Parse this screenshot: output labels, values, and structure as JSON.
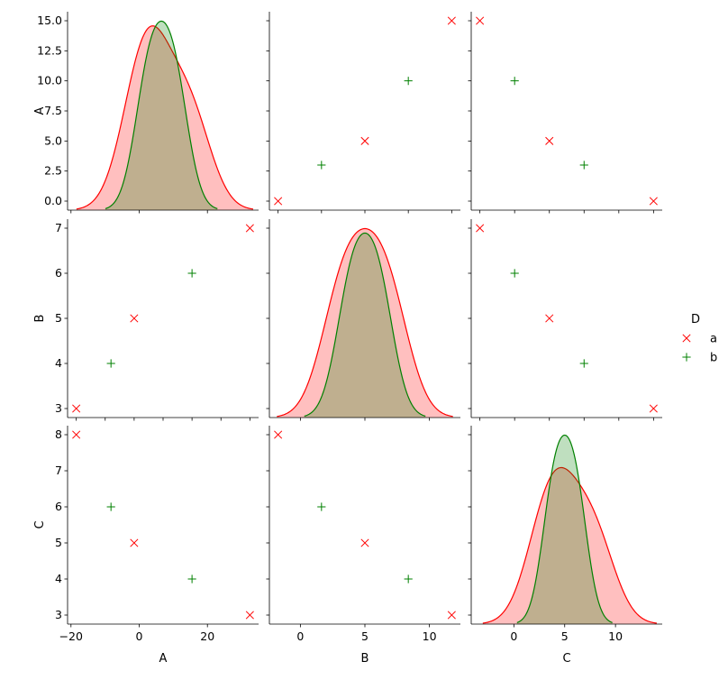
{
  "chart_data": {
    "type": "scatter",
    "kind": "pairplot",
    "variables": [
      "A",
      "B",
      "C"
    ],
    "hue": {
      "title": "D",
      "levels": [
        {
          "name": "a",
          "color": "#ff0000",
          "marker": "x"
        },
        {
          "name": "b",
          "color": "#008000",
          "marker": "+"
        }
      ]
    },
    "points": [
      {
        "A": 0,
        "B": 3,
        "C": 8,
        "D": "a"
      },
      {
        "A": 3,
        "B": 4,
        "C": 6,
        "D": "b"
      },
      {
        "A": 5,
        "B": 5,
        "C": 5,
        "D": "a"
      },
      {
        "A": 10,
        "B": 6,
        "C": 4,
        "D": "b"
      },
      {
        "A": 15,
        "B": 7,
        "C": 3,
        "D": "a"
      }
    ],
    "axes": {
      "A": {
        "lim": [
          -0.75,
          15.75
        ],
        "ticks": [
          0.0,
          2.5,
          5.0,
          7.5,
          10.0,
          12.5,
          15.0
        ],
        "tick_labels": [
          "0.0",
          "2.5",
          "5.0",
          "7.5",
          "10.0",
          "12.5",
          "15.0"
        ]
      },
      "B": {
        "lim": [
          2.8,
          7.2
        ],
        "ticks": [
          3,
          4,
          5,
          6,
          7
        ],
        "tick_labels": [
          "3",
          "4",
          "5",
          "6",
          "7"
        ]
      },
      "C": {
        "lim": [
          2.75,
          8.25
        ],
        "ticks": [
          3,
          4,
          5,
          6,
          7,
          8
        ],
        "tick_labels": [
          "3",
          "4",
          "5",
          "6",
          "7",
          "8"
        ]
      }
    },
    "diag_axes": {
      "A": {
        "lim": [
          -21,
          35
        ],
        "ticks": [
          -20,
          0,
          20
        ],
        "tick_labels": [
          "−20",
          "0",
          "20"
        ]
      },
      "B": {
        "lim": [
          -2.4,
          12.4
        ],
        "ticks": [
          0,
          5,
          10
        ],
        "tick_labels": [
          "0",
          "5",
          "10"
        ]
      },
      "C": {
        "lim": [
          -4.2,
          14.6
        ],
        "ticks": [
          0,
          5,
          10
        ],
        "tick_labels": [
          "0",
          "5",
          "10"
        ]
      }
    },
    "diag": "kde",
    "grid": false,
    "legend_position": "center-right"
  }
}
